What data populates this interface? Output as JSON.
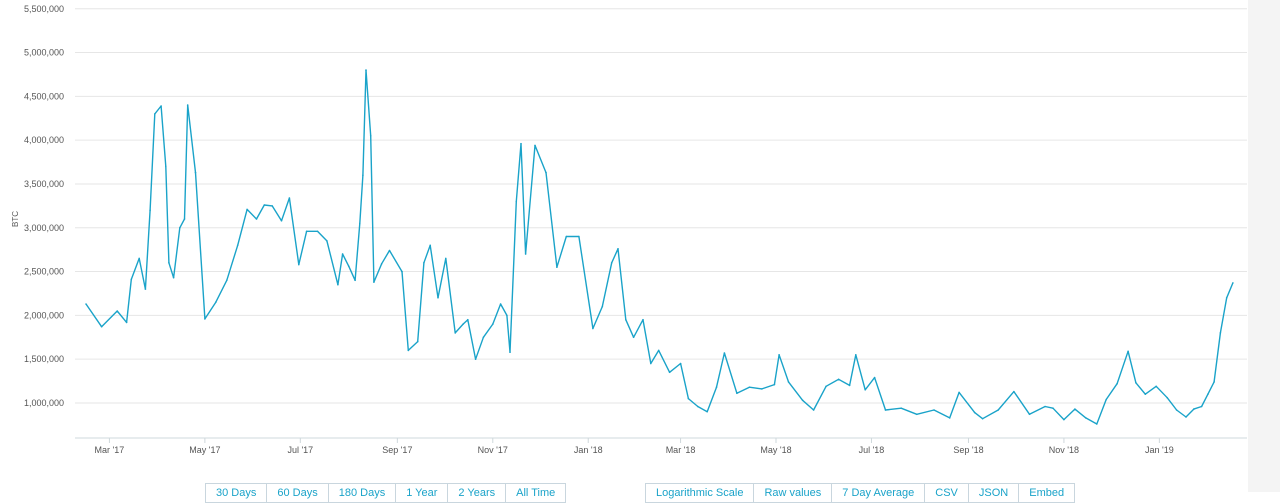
{
  "chart_data": {
    "type": "line",
    "ylabel": "BTC",
    "ylim": [
      600000,
      5600000
    ],
    "yticks": [
      1000000,
      1500000,
      2000000,
      2500000,
      3000000,
      3500000,
      4000000,
      4500000,
      5000000,
      5500000
    ],
    "ytick_labels": [
      "1,000,000",
      "1,500,000",
      "2,000,000",
      "2,500,000",
      "3,000,000",
      "3,500,000",
      "4,000,000",
      "4,500,000",
      "5,000,000",
      "5,500,000"
    ],
    "xlim": [
      "2017-02-07",
      "2019-02-26"
    ],
    "xticks": [
      "2017-03-01",
      "2017-05-01",
      "2017-07-01",
      "2017-09-01",
      "2017-11-01",
      "2018-01-01",
      "2018-03-01",
      "2018-05-01",
      "2018-07-01",
      "2018-09-01",
      "2018-11-01",
      "2019-01-01"
    ],
    "xtick_labels": [
      "Mar '17",
      "May '17",
      "Jul '17",
      "Sep '17",
      "Nov '17",
      "Jan '18",
      "Mar '18",
      "May '18",
      "Jul '18",
      "Sep '18",
      "Nov '18",
      "Jan '19"
    ],
    "grid": true,
    "color": "#1aa3c9",
    "series": [
      {
        "x": [
          "2017-02-14",
          "2017-02-24",
          "2017-03-06",
          "2017-03-12",
          "2017-03-15",
          "2017-03-20",
          "2017-03-24",
          "2017-03-27",
          "2017-03-30",
          "2017-04-03",
          "2017-04-06",
          "2017-04-08",
          "2017-04-11",
          "2017-04-15",
          "2017-04-18",
          "2017-04-20",
          "2017-04-25",
          "2017-05-01",
          "2017-05-08",
          "2017-05-15",
          "2017-05-22",
          "2017-05-28",
          "2017-06-03",
          "2017-06-08",
          "2017-06-13",
          "2017-06-19",
          "2017-06-24",
          "2017-06-30",
          "2017-07-05",
          "2017-07-12",
          "2017-07-18",
          "2017-07-25",
          "2017-07-28",
          "2017-08-01",
          "2017-08-05",
          "2017-08-08",
          "2017-08-10",
          "2017-08-12",
          "2017-08-15",
          "2017-08-17",
          "2017-08-22",
          "2017-08-27",
          "2017-09-04",
          "2017-09-08",
          "2017-09-14",
          "2017-09-18",
          "2017-09-22",
          "2017-09-27",
          "2017-10-02",
          "2017-10-08",
          "2017-10-13",
          "2017-10-16",
          "2017-10-21",
          "2017-10-26",
          "2017-11-01",
          "2017-11-06",
          "2017-11-10",
          "2017-11-12",
          "2017-11-16",
          "2017-11-19",
          "2017-11-22",
          "2017-11-28",
          "2017-12-05",
          "2017-12-12",
          "2017-12-18",
          "2017-12-26",
          "2018-01-04",
          "2018-01-10",
          "2018-01-16",
          "2018-01-20",
          "2018-01-25",
          "2018-01-30",
          "2018-02-05",
          "2018-02-10",
          "2018-02-15",
          "2018-02-22",
          "2018-03-01",
          "2018-03-06",
          "2018-03-12",
          "2018-03-18",
          "2018-03-24",
          "2018-03-29",
          "2018-04-06",
          "2018-04-14",
          "2018-04-22",
          "2018-04-30",
          "2018-05-03",
          "2018-05-09",
          "2018-05-18",
          "2018-05-25",
          "2018-06-02",
          "2018-06-10",
          "2018-06-17",
          "2018-06-21",
          "2018-06-27",
          "2018-07-03",
          "2018-07-10",
          "2018-07-20",
          "2018-07-30",
          "2018-08-10",
          "2018-08-20",
          "2018-08-26",
          "2018-09-05",
          "2018-09-10",
          "2018-09-20",
          "2018-09-30",
          "2018-10-10",
          "2018-10-20",
          "2018-10-25",
          "2018-11-01",
          "2018-11-08",
          "2018-11-15",
          "2018-11-22",
          "2018-11-28",
          "2018-12-05",
          "2018-12-12",
          "2018-12-17",
          "2018-12-23",
          "2018-12-30",
          "2019-01-06",
          "2019-01-12",
          "2019-01-18",
          "2019-01-23",
          "2019-01-28",
          "2019-02-01",
          "2019-02-05",
          "2019-02-09",
          "2019-02-13",
          "2019-02-17"
        ],
        "values": [
          2130000,
          1870000,
          2050000,
          1920000,
          2410000,
          2650000,
          2300000,
          3200000,
          4300000,
          4390000,
          3700000,
          2600000,
          2430000,
          3000000,
          3100000,
          4400000,
          3630000,
          1960000,
          2150000,
          2400000,
          2800000,
          3210000,
          3100000,
          3260000,
          3250000,
          3080000,
          3340000,
          2580000,
          2960000,
          2960000,
          2850000,
          2350000,
          2700000,
          2560000,
          2400000,
          3050000,
          3600000,
          4800000,
          4050000,
          2380000,
          2590000,
          2740000,
          2500000,
          1600000,
          1700000,
          2600000,
          2800000,
          2200000,
          2650000,
          1800000,
          1900000,
          1950000,
          1500000,
          1750000,
          1900000,
          2130000,
          2000000,
          1580000,
          3300000,
          3960000,
          2700000,
          3940000,
          3630000,
          2550000,
          2900000,
          2900000,
          1850000,
          2100000,
          2600000,
          2760000,
          1950000,
          1750000,
          1950000,
          1450000,
          1600000,
          1350000,
          1450000,
          1050000,
          960000,
          900000,
          1180000,
          1570000,
          1110000,
          1180000,
          1160000,
          1210000,
          1550000,
          1240000,
          1030000,
          920000,
          1190000,
          1270000,
          1200000,
          1550000,
          1150000,
          1290000,
          920000,
          940000,
          870000,
          920000,
          830000,
          1120000,
          890000,
          820000,
          920000,
          1130000,
          870000,
          960000,
          940000,
          810000,
          930000,
          830000,
          760000,
          1040000,
          1220000,
          1590000,
          1230000,
          1100000,
          1190000,
          1060000,
          920000,
          840000,
          930000,
          960000,
          1100000,
          1240000,
          1800000,
          2200000,
          2370000
        ]
      }
    ]
  },
  "controls": {
    "range_buttons": [
      "30 Days",
      "60 Days",
      "180 Days",
      "1 Year",
      "2 Years",
      "All Time"
    ],
    "option_buttons": [
      "Logarithmic Scale",
      "Raw values",
      "7 Day Average",
      "CSV",
      "JSON",
      "Embed"
    ]
  }
}
